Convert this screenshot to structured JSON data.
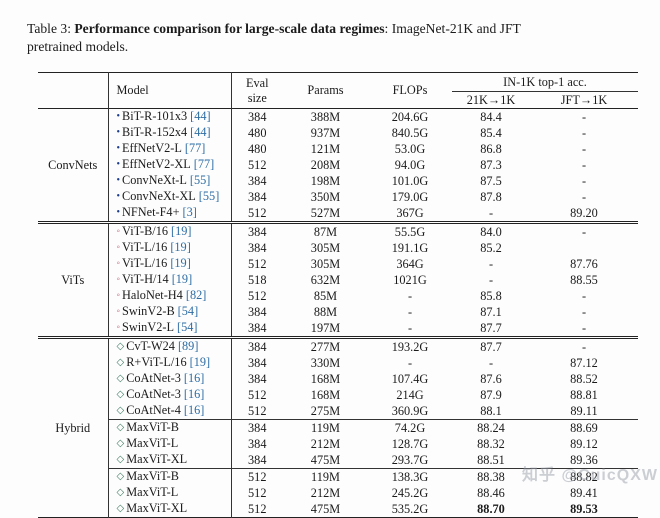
{
  "caption": {
    "label": "Table 3: ",
    "bold": "Performance comparison for large-scale data regimes",
    "rest": ": ImageNet-21K and JFT",
    "line2": "pretrained models."
  },
  "table": {
    "headers": {
      "model": "Model",
      "eval_line1": "Eval",
      "eval_line2": "size",
      "params": "Params",
      "flops": "FLOPs",
      "acc_group": "IN-1K top-1 acc.",
      "acc_21k": "21K→1K",
      "acc_jft": "JFT→1K"
    },
    "groups": [
      {
        "label": "ConvNets",
        "marker": "•",
        "marker_color": "#1c3e8c",
        "blocks": [
          [
            {
              "model": "BiT-R-101x3",
              "ref": "[44]",
              "eval": "384",
              "params": "388M",
              "flops": "204.6G",
              "acc21k": "84.4",
              "accjft": "-"
            },
            {
              "model": "BiT-R-152x4",
              "ref": "[44]",
              "eval": "480",
              "params": "937M",
              "flops": "840.5G",
              "acc21k": "85.4",
              "accjft": "-"
            },
            {
              "model": "EffNetV2-L",
              "ref": "[77]",
              "eval": "480",
              "params": "121M",
              "flops": "53.0G",
              "acc21k": "86.8",
              "accjft": "-"
            },
            {
              "model": "EffNetV2-XL",
              "ref": "[77]",
              "eval": "512",
              "params": "208M",
              "flops": "94.0G",
              "acc21k": "87.3",
              "accjft": "-"
            },
            {
              "model": "ConvNeXt-L",
              "ref": "[55]",
              "eval": "384",
              "params": "198M",
              "flops": "101.0G",
              "acc21k": "87.5",
              "accjft": "-"
            },
            {
              "model": "ConvNeXt-XL",
              "ref": "[55]",
              "eval": "384",
              "params": "350M",
              "flops": "179.0G",
              "acc21k": "87.8",
              "accjft": "-"
            },
            {
              "model": "NFNet-F4+",
              "ref": "[3]",
              "eval": "512",
              "params": "527M",
              "flops": "367G",
              "acc21k": "-",
              "accjft": "89.20"
            }
          ]
        ]
      },
      {
        "label": "ViTs",
        "marker": "◦",
        "marker_color": "#c05a6e",
        "blocks": [
          [
            {
              "model": "ViT-B/16",
              "ref": "[19]",
              "eval": "384",
              "params": "87M",
              "flops": "55.5G",
              "acc21k": "84.0",
              "accjft": "-"
            },
            {
              "model": "ViT-L/16",
              "ref": "[19]",
              "eval": "384",
              "params": "305M",
              "flops": "191.1G",
              "acc21k": "85.2",
              "accjft": ""
            },
            {
              "model": "ViT-L/16",
              "ref": "[19]",
              "eval": "512",
              "params": "305M",
              "flops": "364G",
              "acc21k": "-",
              "accjft": "87.76"
            },
            {
              "model": "ViT-H/14",
              "ref": "[19]",
              "eval": "518",
              "params": "632M",
              "flops": "1021G",
              "acc21k": "-",
              "accjft": "88.55"
            },
            {
              "model": "HaloNet-H4",
              "ref": "[82]",
              "eval": "512",
              "params": "85M",
              "flops": "-",
              "acc21k": "85.8",
              "accjft": "-"
            },
            {
              "model": "SwinV2-B",
              "ref": "[54]",
              "eval": "384",
              "params": "88M",
              "flops": "-",
              "acc21k": "87.1",
              "accjft": "-"
            },
            {
              "model": "SwinV2-L",
              "ref": "[54]",
              "eval": "384",
              "params": "197M",
              "flops": "-",
              "acc21k": "87.7",
              "accjft": "-"
            }
          ]
        ]
      },
      {
        "label": "Hybrid",
        "marker": "◇",
        "marker_color": "#3c7a60",
        "blocks": [
          [
            {
              "model": "CvT-W24",
              "ref": "[89]",
              "eval": "384",
              "params": "277M",
              "flops": "193.2G",
              "acc21k": "87.7",
              "accjft": "-"
            },
            {
              "model": "R+ViT-L/16",
              "ref": "[19]",
              "eval": "384",
              "params": "330M",
              "flops": "-",
              "acc21k": "-",
              "accjft": "87.12"
            },
            {
              "model": "CoAtNet-3",
              "ref": "[16]",
              "eval": "384",
              "params": "168M",
              "flops": "107.4G",
              "acc21k": "87.6",
              "accjft": "88.52"
            },
            {
              "model": "CoAtNet-3",
              "ref": "[16]",
              "eval": "512",
              "params": "168M",
              "flops": "214G",
              "acc21k": "87.9",
              "accjft": "88.81"
            },
            {
              "model": "CoAtNet-4",
              "ref": "[16]",
              "eval": "512",
              "params": "275M",
              "flops": "360.9G",
              "acc21k": "88.1",
              "accjft": "89.11"
            }
          ],
          [
            {
              "model": "MaxViT-B",
              "ref": "",
              "eval": "384",
              "params": "119M",
              "flops": "74.2G",
              "acc21k": "88.24",
              "accjft": "88.69"
            },
            {
              "model": "MaxViT-L",
              "ref": "",
              "eval": "384",
              "params": "212M",
              "flops": "128.7G",
              "acc21k": "88.32",
              "accjft": "89.12"
            },
            {
              "model": "MaxViT-XL",
              "ref": "",
              "eval": "384",
              "params": "475M",
              "flops": "293.7G",
              "acc21k": "88.51",
              "accjft": "89.36"
            }
          ],
          [
            {
              "model": "MaxViT-B",
              "ref": "",
              "eval": "512",
              "params": "119M",
              "flops": "138.3G",
              "acc21k": "88.38",
              "accjft": "88.82"
            },
            {
              "model": "MaxViT-L",
              "ref": "",
              "eval": "512",
              "params": "212M",
              "flops": "245.2G",
              "acc21k": "88.46",
              "accjft": "89.41"
            },
            {
              "model": "MaxViT-XL",
              "ref": "",
              "eval": "512",
              "params": "475M",
              "flops": "535.2G",
              "acc21k": "88.70",
              "accjft": "89.53",
              "bold": true
            }
          ]
        ]
      }
    ]
  },
  "colors": {
    "citation": "#2e6da4",
    "rule": "#222222",
    "watermark": "#9aa0ab"
  },
  "watermark": {
    "text": "知乎 @CuicQXW"
  }
}
